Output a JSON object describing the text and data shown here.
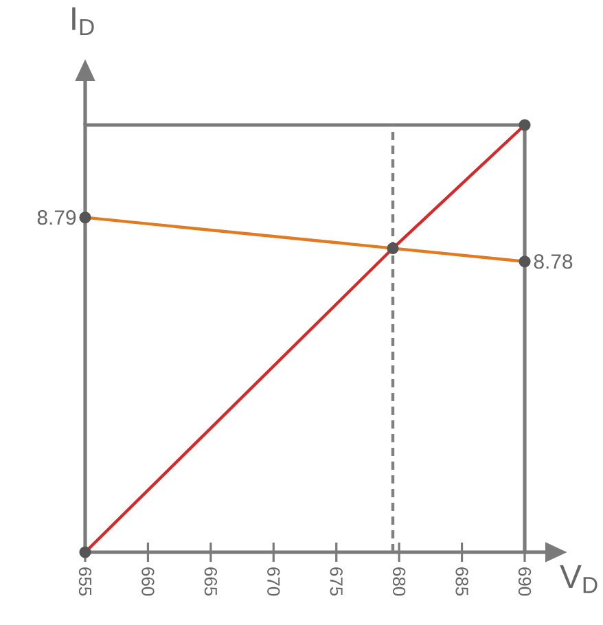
{
  "chart_data": {
    "type": "line",
    "xlabel": "V$_{D}$",
    "ylabel": "I$_{D}$",
    "xlim": [
      655,
      690
    ],
    "xticks": [
      655,
      660,
      665,
      670,
      675,
      680,
      685,
      690
    ],
    "ylim": [
      8.714,
      8.811
    ],
    "tick_labels": "x",
    "grid": false,
    "marker": "circle",
    "series": [
      {
        "color": "#d42a2a",
        "x": [
          655,
          679.5,
          690
        ],
        "values": [
          8.714,
          8.783,
          8.811
        ]
      },
      {
        "color": "#e07b22",
        "x": [
          655,
          690
        ],
        "values": [
          8.79,
          8.78
        ],
        "value_labels": [
          "8.79",
          "8.78"
        ]
      }
    ],
    "ref_lines": [
      {
        "axis": "x",
        "value": 679.5,
        "color": "#808080",
        "line_style": "dashed"
      }
    ]
  }
}
